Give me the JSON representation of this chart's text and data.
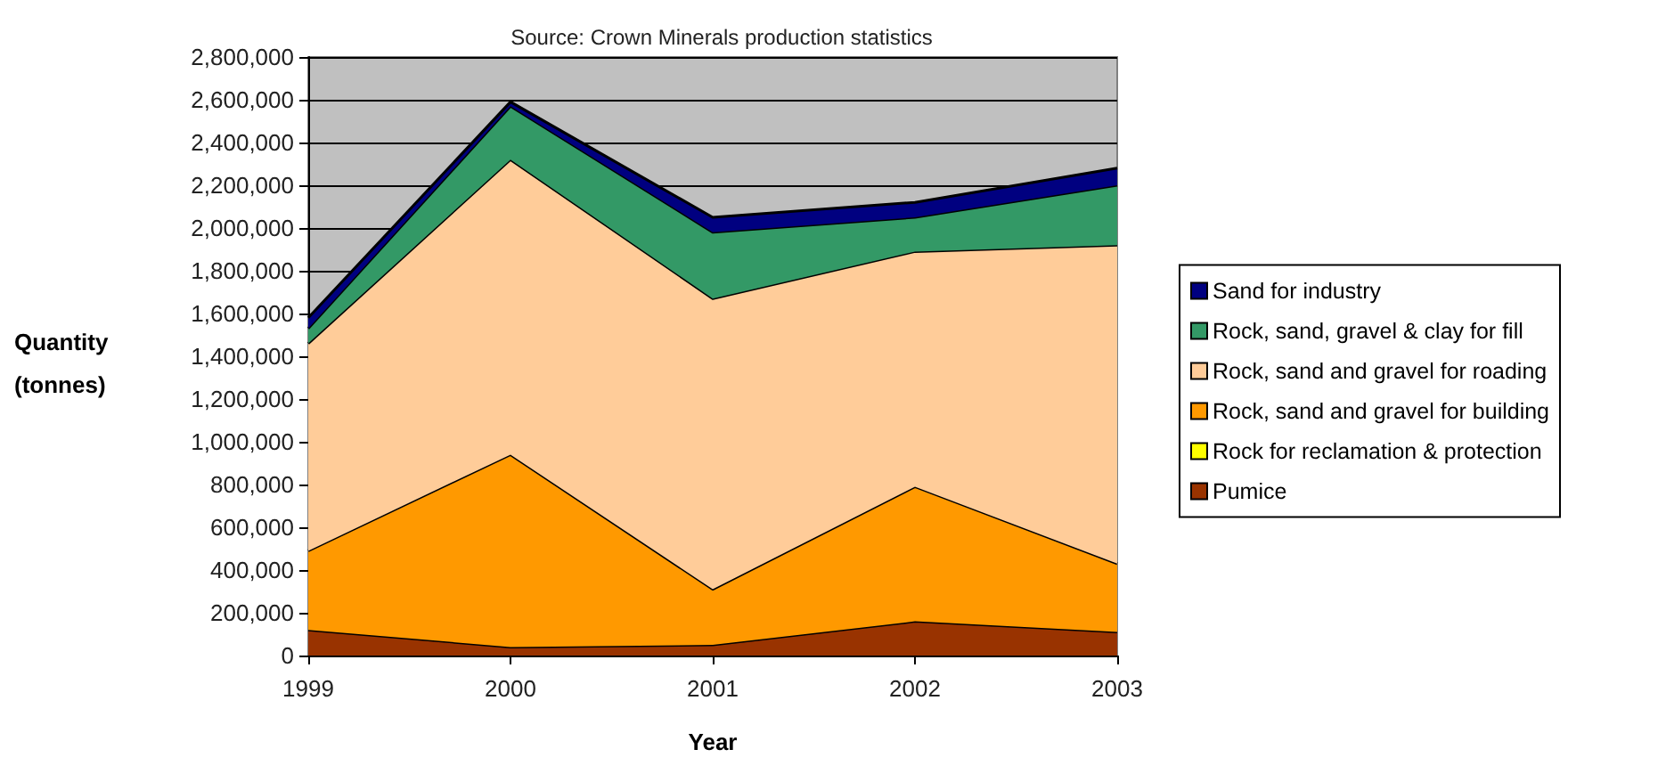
{
  "chart_data": {
    "type": "area",
    "annotations": [
      "Source: Crown Minerals production statistics"
    ],
    "xlabel": "Year",
    "ylabel": "Quantity (tonnes)",
    "categories": [
      "1999",
      "2000",
      "2001",
      "2002",
      "2003"
    ],
    "stacked": true,
    "marker": "none",
    "grid": "y",
    "legend": "right",
    "ylim": [
      0,
      2800000
    ],
    "yticks": [
      {
        "value": 0,
        "label": "0"
      },
      {
        "value": 200000,
        "label": "200,000"
      },
      {
        "value": 400000,
        "label": "400,000"
      },
      {
        "value": 600000,
        "label": "600,000"
      },
      {
        "value": 800000,
        "label": "800,000"
      },
      {
        "value": 1000000,
        "label": "1,000,000"
      },
      {
        "value": 1200000,
        "label": "1,200,000"
      },
      {
        "value": 1400000,
        "label": "1,400,000"
      },
      {
        "value": 1600000,
        "label": "1,600,000"
      },
      {
        "value": 1800000,
        "label": "1,800,000"
      },
      {
        "value": 2000000,
        "label": "2,000,000"
      },
      {
        "value": 2200000,
        "label": "2,200,000"
      },
      {
        "value": 2400000,
        "label": "2,400,000"
      },
      {
        "value": 2600000,
        "label": "2,600,000"
      },
      {
        "value": 2800000,
        "label": "2,800,000"
      }
    ],
    "series": [
      {
        "name": "Pumice",
        "color": "#993300",
        "values": [
          120000,
          40000,
          50000,
          160000,
          110000
        ]
      },
      {
        "name": "Rock for reclamation & protection",
        "color": "#ffff00",
        "values": [
          null,
          null,
          null,
          null,
          null
        ]
      },
      {
        "name": "Rock, sand and gravel for building",
        "color": "#ff9900",
        "values": [
          370000,
          900000,
          260000,
          630000,
          320000
        ]
      },
      {
        "name": "Rock, sand and gravel for roading",
        "color": "#ffcc99",
        "values": [
          970000,
          1380000,
          1360000,
          1100000,
          1490000
        ]
      },
      {
        "name": "Rock, sand, gravel & clay for fill",
        "color": "#339966",
        "values": [
          70000,
          250000,
          310000,
          160000,
          280000
        ]
      },
      {
        "name": "Sand for industry",
        "color": "#000080",
        "values": [
          50000,
          20000,
          70000,
          70000,
          80000
        ]
      }
    ]
  }
}
